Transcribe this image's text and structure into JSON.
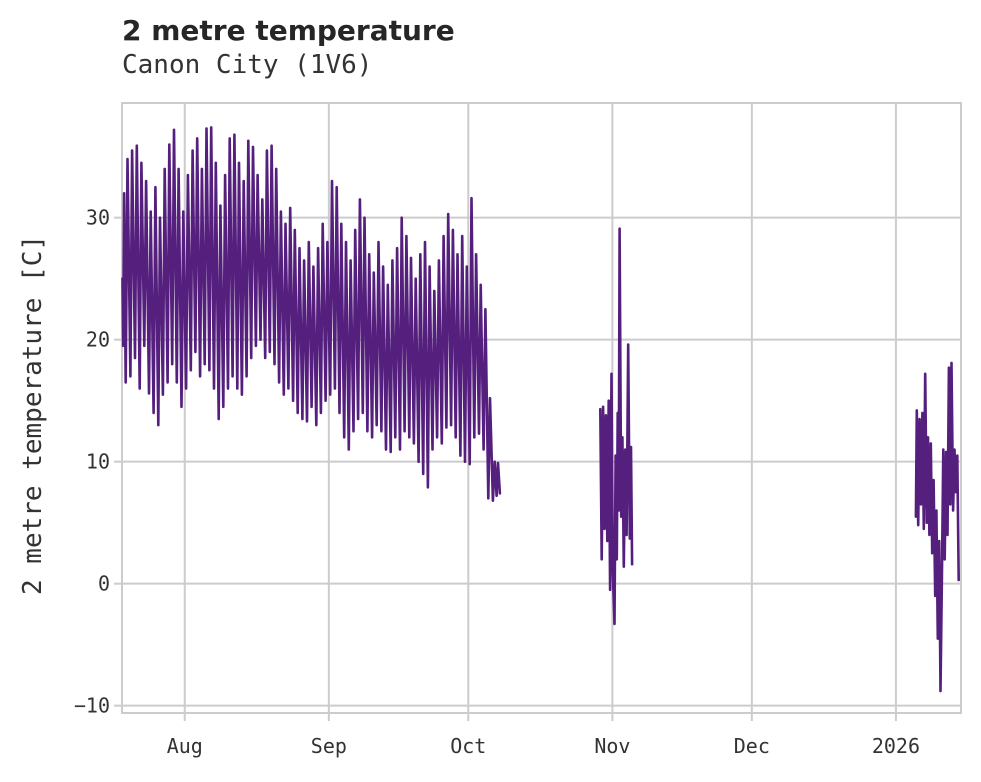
{
  "header": {
    "title": "2 metre temperature",
    "subtitle": "Canon City (1V6)"
  },
  "chart_data": {
    "type": "line",
    "title": "2 metre temperature",
    "subtitle": "Canon City (1V6)",
    "xlabel": "",
    "ylabel": "2 metre temperature [C]",
    "legend": "none",
    "grid": true,
    "line_color": "#551f7d",
    "grid_color": "#cccccc",
    "text_color": "#333333",
    "x_axis": {
      "unit": "day index (0 = Jul 18)",
      "range": [
        0.5,
        181
      ],
      "ticks": [
        {
          "pos": 14,
          "label": "Aug"
        },
        {
          "pos": 45,
          "label": "Sep"
        },
        {
          "pos": 75,
          "label": "Oct"
        },
        {
          "pos": 106,
          "label": "Nov"
        },
        {
          "pos": 136,
          "label": "Dec"
        },
        {
          "pos": 167,
          "label": "2026"
        }
      ]
    },
    "y_axis": {
      "range": [
        -10.6,
        39.4
      ],
      "ticks": [
        {
          "pos": -10,
          "label": "−10"
        },
        {
          "pos": 0,
          "label": "0"
        },
        {
          "pos": 10,
          "label": "10"
        },
        {
          "pos": 20,
          "label": "20"
        },
        {
          "pos": 30,
          "label": "30"
        }
      ]
    },
    "series": [
      {
        "name": "segment-1",
        "points": [
          [
            0.6,
            25.0
          ],
          [
            0.75,
            19.5
          ],
          [
            0.95,
            32.0
          ],
          [
            1.3,
            16.5
          ],
          [
            1.68,
            34.8
          ],
          [
            2.3,
            17.0
          ],
          [
            2.68,
            35.5
          ],
          [
            3.3,
            18.5
          ],
          [
            3.68,
            35.9
          ],
          [
            4.3,
            16.0
          ],
          [
            4.68,
            34.5
          ],
          [
            5.3,
            19.5
          ],
          [
            5.68,
            33.0
          ],
          [
            6.3,
            15.6
          ],
          [
            6.68,
            30.5
          ],
          [
            7.3,
            14.0
          ],
          [
            7.68,
            32.5
          ],
          [
            8.3,
            13.0
          ],
          [
            8.68,
            30.0
          ],
          [
            9.3,
            15.5
          ],
          [
            9.68,
            34.0
          ],
          [
            10.3,
            16.5
          ],
          [
            10.68,
            36.0
          ],
          [
            11.3,
            18.0
          ],
          [
            11.68,
            37.2
          ],
          [
            12.3,
            16.5
          ],
          [
            12.68,
            34.0
          ],
          [
            13.3,
            14.5
          ],
          [
            13.68,
            30.5
          ],
          [
            14.3,
            16.0
          ],
          [
            14.68,
            33.5
          ],
          [
            15.3,
            17.5
          ],
          [
            15.68,
            35.5
          ],
          [
            16.3,
            19.0
          ],
          [
            16.68,
            36.5
          ],
          [
            17.3,
            17.0
          ],
          [
            17.68,
            34.0
          ],
          [
            18.3,
            18.0
          ],
          [
            18.68,
            37.3
          ],
          [
            19.3,
            17.5
          ],
          [
            19.68,
            37.4
          ],
          [
            20.3,
            16.0
          ],
          [
            20.68,
            34.5
          ],
          [
            21.3,
            13.5
          ],
          [
            21.68,
            31.0
          ],
          [
            22.3,
            14.5
          ],
          [
            22.68,
            33.5
          ],
          [
            23.3,
            16.0
          ],
          [
            23.68,
            36.5
          ],
          [
            24.3,
            17.0
          ],
          [
            24.68,
            36.8
          ],
          [
            25.3,
            16.0
          ],
          [
            25.68,
            34.5
          ],
          [
            26.3,
            15.5
          ],
          [
            26.68,
            33.0
          ],
          [
            27.3,
            17.0
          ],
          [
            27.68,
            36.3
          ],
          [
            28.3,
            18.5
          ],
          [
            28.68,
            35.8
          ],
          [
            29.3,
            19.5
          ],
          [
            29.68,
            33.5
          ],
          [
            30.3,
            20.0
          ],
          [
            30.68,
            31.5
          ],
          [
            31.3,
            18.5
          ],
          [
            31.68,
            35.5
          ],
          [
            32.3,
            19.0
          ],
          [
            32.68,
            35.9
          ],
          [
            33.3,
            18.0
          ],
          [
            33.68,
            34.0
          ],
          [
            34.3,
            16.5
          ],
          [
            34.68,
            30.5
          ],
          [
            35.3,
            15.5
          ],
          [
            35.68,
            29.5
          ],
          [
            36.3,
            16.0
          ],
          [
            36.68,
            30.8
          ],
          [
            37.3,
            15.0
          ],
          [
            37.68,
            29.0
          ],
          [
            38.3,
            14.0
          ],
          [
            38.68,
            27.5
          ],
          [
            39.3,
            13.5
          ],
          [
            39.68,
            26.5
          ],
          [
            40.3,
            13.3
          ],
          [
            40.68,
            28.0
          ],
          [
            41.3,
            14.5
          ],
          [
            41.68,
            26.0
          ],
          [
            42.3,
            13.0
          ],
          [
            42.68,
            27.5
          ],
          [
            43.3,
            14.0
          ],
          [
            43.68,
            29.5
          ],
          [
            44.3,
            15.0
          ],
          [
            44.68,
            28.0
          ],
          [
            45.3,
            15.5
          ],
          [
            45.68,
            33.0
          ],
          [
            46.3,
            16.0
          ],
          [
            46.68,
            32.5
          ],
          [
            47.3,
            14.0
          ],
          [
            47.68,
            29.5
          ],
          [
            48.3,
            12.0
          ],
          [
            48.68,
            28.0
          ],
          [
            49.3,
            11.0
          ],
          [
            49.68,
            26.5
          ],
          [
            50.3,
            12.5
          ],
          [
            50.68,
            29.0
          ],
          [
            51.3,
            13.5
          ],
          [
            51.68,
            31.5
          ],
          [
            52.3,
            14.0
          ],
          [
            52.68,
            30.0
          ],
          [
            53.3,
            12.5
          ],
          [
            53.68,
            27.0
          ],
          [
            54.3,
            12.0
          ],
          [
            54.68,
            25.5
          ],
          [
            55.3,
            13.0
          ],
          [
            55.68,
            28.0
          ],
          [
            56.3,
            12.5
          ],
          [
            56.68,
            26.0
          ],
          [
            57.3,
            11.0
          ],
          [
            57.68,
            24.5
          ],
          [
            58.3,
            10.8
          ],
          [
            58.68,
            26.5
          ],
          [
            59.3,
            12.0
          ],
          [
            59.68,
            27.5
          ],
          [
            60.3,
            11.0
          ],
          [
            60.68,
            30.0
          ],
          [
            61.3,
            12.5
          ],
          [
            61.68,
            28.5
          ],
          [
            62.3,
            12.0
          ],
          [
            62.68,
            26.7
          ],
          [
            63.3,
            11.5
          ],
          [
            63.68,
            25.0
          ],
          [
            64.3,
            10.0
          ],
          [
            64.68,
            27.0
          ],
          [
            65.3,
            9.0
          ],
          [
            65.68,
            28.0
          ],
          [
            66.3,
            7.9
          ],
          [
            66.68,
            26.0
          ],
          [
            67.3,
            11.0
          ],
          [
            67.68,
            24.0
          ],
          [
            68.3,
            12.0
          ],
          [
            68.68,
            26.5
          ],
          [
            69.3,
            11.5
          ],
          [
            69.68,
            28.5
          ],
          [
            70.3,
            12.8
          ],
          [
            70.68,
            30.3
          ],
          [
            71.3,
            13.0
          ],
          [
            71.68,
            29.0
          ],
          [
            72.3,
            12.0
          ],
          [
            72.68,
            27.0
          ],
          [
            73.3,
            10.5
          ],
          [
            73.68,
            28.5
          ],
          [
            74.3,
            10.0
          ],
          [
            74.68,
            26.0
          ],
          [
            75.3,
            9.8
          ],
          [
            75.68,
            31.6
          ],
          [
            76.3,
            12.0
          ],
          [
            76.68,
            27.0
          ],
          [
            77.3,
            12.3
          ],
          [
            77.68,
            24.5
          ],
          [
            78.3,
            11.0
          ],
          [
            78.68,
            22.5
          ],
          [
            79.3,
            7.0
          ],
          [
            79.68,
            15.2
          ],
          [
            80.3,
            6.8
          ],
          [
            80.68,
            10.0
          ],
          [
            81.1,
            7.2
          ],
          [
            81.4,
            9.9
          ],
          [
            81.8,
            7.4
          ]
        ]
      },
      {
        "name": "segment-2",
        "points": [
          [
            103.4,
            14.3
          ],
          [
            103.7,
            2.0
          ],
          [
            104.0,
            14.5
          ],
          [
            104.3,
            4.5
          ],
          [
            104.6,
            13.8
          ],
          [
            104.9,
            3.5
          ],
          [
            105.2,
            15.0
          ],
          [
            105.5,
            -0.5
          ],
          [
            105.8,
            17.2
          ],
          [
            106.1,
            1.0
          ],
          [
            106.45,
            -3.3
          ],
          [
            106.7,
            10.5
          ],
          [
            106.95,
            2.0
          ],
          [
            107.15,
            14.0
          ],
          [
            107.35,
            6.0
          ],
          [
            107.55,
            29.1
          ],
          [
            107.9,
            5.5
          ],
          [
            108.15,
            12.0
          ],
          [
            108.45,
            1.4
          ],
          [
            108.75,
            11.0
          ],
          [
            109.05,
            4.0
          ],
          [
            109.4,
            19.6
          ],
          [
            109.75,
            3.7
          ],
          [
            110.0,
            11.2
          ],
          [
            110.25,
            1.6
          ]
        ]
      },
      {
        "name": "segment-3",
        "points": [
          [
            171.3,
            5.5
          ],
          [
            171.5,
            14.2
          ],
          [
            171.8,
            4.8
          ],
          [
            172.1,
            13.5
          ],
          [
            172.4,
            6.5
          ],
          [
            172.7,
            14.0
          ],
          [
            173.0,
            4.5
          ],
          [
            173.3,
            17.2
          ],
          [
            173.65,
            5.0
          ],
          [
            173.9,
            12.0
          ],
          [
            174.2,
            4.0
          ],
          [
            174.5,
            11.5
          ],
          [
            174.8,
            2.5
          ],
          [
            175.1,
            8.5
          ],
          [
            175.45,
            -1.0
          ],
          [
            175.7,
            6.0
          ],
          [
            176.0,
            -4.5
          ],
          [
            176.3,
            3.5
          ],
          [
            176.6,
            -8.8
          ],
          [
            176.9,
            0.5
          ],
          [
            177.2,
            11.0
          ],
          [
            177.5,
            2.0
          ],
          [
            177.8,
            10.8
          ],
          [
            178.1,
            4.0
          ],
          [
            178.4,
            17.7
          ],
          [
            178.7,
            6.5
          ],
          [
            178.95,
            18.1
          ],
          [
            179.3,
            6.0
          ],
          [
            179.6,
            11.0
          ],
          [
            179.9,
            7.5
          ],
          [
            180.2,
            10.5
          ],
          [
            180.5,
            0.3
          ]
        ]
      }
    ]
  }
}
